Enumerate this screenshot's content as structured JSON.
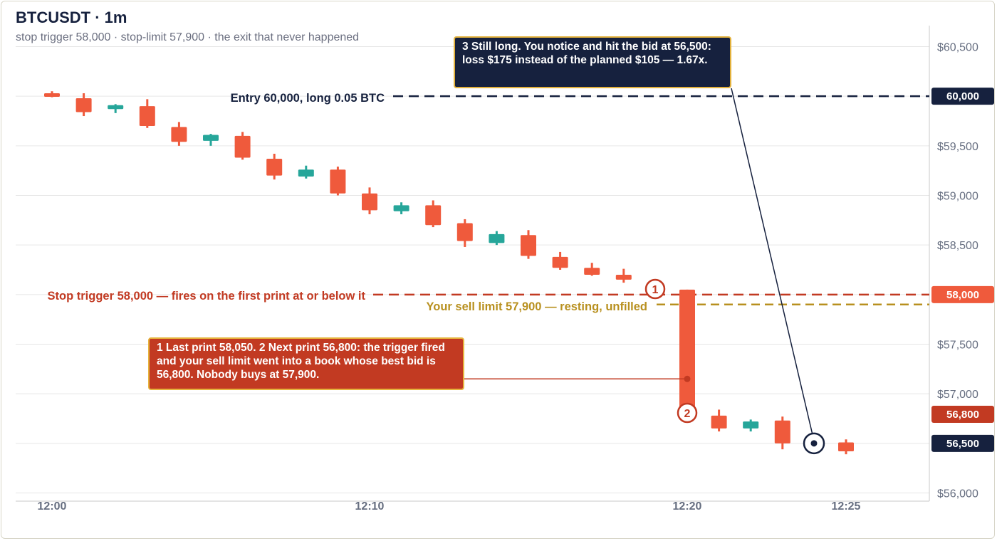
{
  "header": {
    "title": "BTCUSDT · 1m",
    "subtitle": "stop trigger 58,000 · stop-limit 57,900 · the exit that never happened"
  },
  "colors": {
    "down_candle": "#ef5a3c",
    "up_candle": "#26a69a",
    "entry_line": "#16213e",
    "stop_line": "#c23a22",
    "limit_line": "#b8901f",
    "grid": "#e6e6e6",
    "axis_text": "#666e80",
    "callout_border": "#e2b13c"
  },
  "chart_data": {
    "type": "candlestick",
    "symbol": "BTCUSDT",
    "interval": "1m",
    "ylim": [
      56000,
      60700
    ],
    "y_ticks": [
      56000,
      56500,
      57000,
      57500,
      58000,
      58500,
      59000,
      59500,
      60000,
      60500
    ],
    "y_tick_labels": [
      "$56,000",
      "$56,500",
      "$57,000",
      "$57,500",
      "$58,000",
      "$58,500",
      "$59,000",
      "$59,500",
      "$60,000",
      "$60,500"
    ],
    "x_ticks": [
      {
        "minute": 0,
        "label": "12:00"
      },
      {
        "minute": 10,
        "label": "12:10"
      },
      {
        "minute": 20,
        "label": "12:20"
      },
      {
        "minute": 25,
        "label": "12:25"
      }
    ],
    "candles": [
      {
        "m": 0,
        "o": 60030,
        "h": 60050,
        "l": 59990,
        "c": 60010
      },
      {
        "m": 1,
        "o": 59980,
        "h": 60030,
        "l": 59800,
        "c": 59840
      },
      {
        "m": 2,
        "o": 59870,
        "h": 59920,
        "l": 59830,
        "c": 59910
      },
      {
        "m": 3,
        "o": 59900,
        "h": 59970,
        "l": 59680,
        "c": 59700
      },
      {
        "m": 4,
        "o": 59690,
        "h": 59740,
        "l": 59500,
        "c": 59540
      },
      {
        "m": 5,
        "o": 59550,
        "h": 59620,
        "l": 59500,
        "c": 59610
      },
      {
        "m": 6,
        "o": 59600,
        "h": 59640,
        "l": 59360,
        "c": 59380
      },
      {
        "m": 7,
        "o": 59370,
        "h": 59420,
        "l": 59160,
        "c": 59200
      },
      {
        "m": 8,
        "o": 59190,
        "h": 59300,
        "l": 59170,
        "c": 59260
      },
      {
        "m": 9,
        "o": 59260,
        "h": 59290,
        "l": 59000,
        "c": 59020
      },
      {
        "m": 10,
        "o": 59020,
        "h": 59080,
        "l": 58810,
        "c": 58850
      },
      {
        "m": 11,
        "o": 58840,
        "h": 58930,
        "l": 58810,
        "c": 58900
      },
      {
        "m": 12,
        "o": 58900,
        "h": 58950,
        "l": 58680,
        "c": 58700
      },
      {
        "m": 13,
        "o": 58720,
        "h": 58760,
        "l": 58480,
        "c": 58540
      },
      {
        "m": 14,
        "o": 58520,
        "h": 58640,
        "l": 58500,
        "c": 58610
      },
      {
        "m": 15,
        "o": 58600,
        "h": 58650,
        "l": 58360,
        "c": 58390
      },
      {
        "m": 16,
        "o": 58380,
        "h": 58430,
        "l": 58250,
        "c": 58270
      },
      {
        "m": 17,
        "o": 58270,
        "h": 58320,
        "l": 58190,
        "c": 58200
      },
      {
        "m": 18,
        "o": 58200,
        "h": 58260,
        "l": 58120,
        "c": 58150
      },
      {
        "m": 20,
        "o": 58050,
        "h": 58050,
        "l": 56800,
        "c": 56800
      },
      {
        "m": 21,
        "o": 56780,
        "h": 56840,
        "l": 56620,
        "c": 56650
      },
      {
        "m": 22,
        "o": 56650,
        "h": 56740,
        "l": 56620,
        "c": 56720
      },
      {
        "m": 23,
        "o": 56730,
        "h": 56770,
        "l": 56440,
        "c": 56500
      },
      {
        "m": 25,
        "o": 56510,
        "h": 56540,
        "l": 56390,
        "c": 56420
      }
    ],
    "levels": [
      {
        "id": "entry",
        "price": 60000,
        "label": "Entry 60,000, long 0.05 BTC",
        "tag": "60,000"
      },
      {
        "id": "stop",
        "price": 58000,
        "label": "Stop trigger 58,000 — fires on the first print at or below it",
        "tag": "58,000"
      },
      {
        "id": "limit",
        "price": 57900,
        "label": "Your sell limit 57,900 — resting, unfilled"
      }
    ],
    "price_tags": [
      {
        "price": 56800,
        "label": "56,800"
      },
      {
        "price": 56500,
        "label": "56,500"
      }
    ],
    "markers": [
      {
        "num": "1",
        "minute": 19.2,
        "price": 58050
      },
      {
        "num": "2",
        "minute": 20,
        "price": 56800
      }
    ],
    "exit_point": {
      "minute": 24.3,
      "price": 56500
    },
    "annotations": {
      "gap_note": "1 Last print 58,050. 2 Next print 56,800: the trigger fired and your sell limit went into a book whose best bid is 56,800. Nobody buys at 57,900.",
      "exit_note": "3 Still long. You notice and hit the bid at 56,500: loss $175 instead of the planned $105 — 1.67x."
    }
  }
}
